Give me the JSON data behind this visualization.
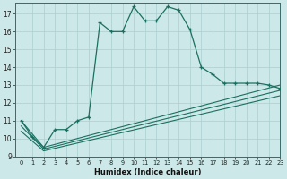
{
  "xlabel": "Humidex (Indice chaleur)",
  "background_color": "#cce8e8",
  "grid_color": "#aacfcf",
  "line_color": "#1a7060",
  "xlim": [
    -0.5,
    23
  ],
  "ylim": [
    9,
    17.6
  ],
  "yticks": [
    9,
    10,
    11,
    12,
    13,
    14,
    15,
    16,
    17
  ],
  "xticks": [
    0,
    1,
    2,
    3,
    4,
    5,
    6,
    7,
    8,
    9,
    10,
    11,
    12,
    13,
    14,
    15,
    16,
    17,
    18,
    19,
    20,
    21,
    22,
    23
  ],
  "series1_x": [
    0,
    1,
    2,
    3,
    4,
    5,
    6,
    7,
    8,
    9,
    10,
    11,
    12,
    13,
    14,
    15,
    16,
    17,
    18,
    19,
    20,
    21,
    22,
    23
  ],
  "series1_y": [
    11.0,
    10.1,
    9.5,
    10.5,
    10.5,
    11.0,
    11.2,
    16.5,
    16.0,
    16.0,
    17.4,
    16.6,
    16.6,
    17.4,
    17.2,
    16.1,
    14.0,
    13.6,
    13.1,
    13.1,
    13.1,
    13.1,
    13.0,
    12.8
  ],
  "series2_x": [
    0,
    2,
    23
  ],
  "series2_y": [
    11.0,
    9.5,
    13.0
  ],
  "series3_x": [
    0,
    2,
    23
  ],
  "series3_y": [
    10.7,
    9.4,
    12.7
  ],
  "series4_x": [
    0,
    2,
    23
  ],
  "series4_y": [
    10.4,
    9.3,
    12.4
  ]
}
